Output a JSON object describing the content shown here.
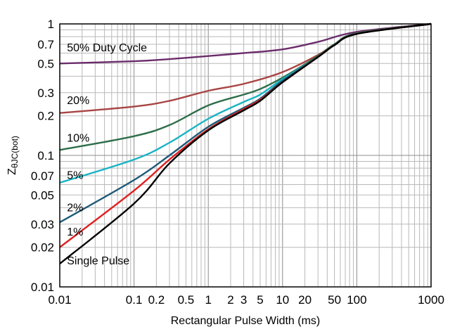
{
  "chart_data": {
    "type": "line",
    "x_scale": "log",
    "y_scale": "log",
    "xlabel": "Rectangular Pulse Width (ms)",
    "ylabel": "ZθJC(bot)",
    "ylabel_main": "Z",
    "ylabel_sub": "θJC(bot)",
    "xlim": [
      0.01,
      1000
    ],
    "ylim": [
      0.01,
      1
    ],
    "grid": true,
    "x_ticks": [
      {
        "value": 0.01,
        "label": "0.01"
      },
      {
        "value": 0.1,
        "label": "0.1"
      },
      {
        "value": 0.2,
        "label": "0.2"
      },
      {
        "value": 0.5,
        "label": "0.5"
      },
      {
        "value": 1,
        "label": "1"
      },
      {
        "value": 2,
        "label": "2"
      },
      {
        "value": 3,
        "label": "3"
      },
      {
        "value": 5,
        "label": "5"
      },
      {
        "value": 10,
        "label": "10"
      },
      {
        "value": 20,
        "label": "20"
      },
      {
        "value": 50,
        "label": "50"
      },
      {
        "value": 100,
        "label": "100"
      },
      {
        "value": 1000,
        "label": "1000"
      }
    ],
    "y_ticks": [
      {
        "value": 0.01,
        "label": "0.01"
      },
      {
        "value": 0.02,
        "label": "0.02"
      },
      {
        "value": 0.03,
        "label": "0.03"
      },
      {
        "value": 0.05,
        "label": "0.05"
      },
      {
        "value": 0.07,
        "label": "0.07"
      },
      {
        "value": 0.1,
        "label": "0.1"
      },
      {
        "value": 0.2,
        "label": "0.2"
      },
      {
        "value": 0.3,
        "label": "0.3"
      },
      {
        "value": 0.5,
        "label": "0.5"
      },
      {
        "value": 0.7,
        "label": "0.7"
      },
      {
        "value": 1,
        "label": "1"
      }
    ],
    "series": [
      {
        "name": "50% Duty Cycle",
        "color": "#6b2c6b",
        "x": [
          0.01,
          0.1,
          0.3,
          1,
          3,
          10,
          30,
          100,
          1000
        ],
        "y": [
          0.5,
          0.52,
          0.54,
          0.57,
          0.6,
          0.64,
          0.73,
          0.87,
          1.0
        ]
      },
      {
        "name": "20%",
        "color": "#a84444",
        "x": [
          0.01,
          0.1,
          0.3,
          1,
          3,
          10,
          30,
          50,
          100,
          1000
        ],
        "y": [
          0.21,
          0.235,
          0.26,
          0.31,
          0.35,
          0.43,
          0.58,
          0.7,
          0.85,
          1.0
        ]
      },
      {
        "name": "10%",
        "color": "#2f6e4a",
        "x": [
          0.01,
          0.1,
          0.3,
          1,
          3,
          5,
          10,
          30,
          50,
          100,
          1000
        ],
        "y": [
          0.11,
          0.14,
          0.17,
          0.24,
          0.29,
          0.32,
          0.39,
          0.57,
          0.7,
          0.85,
          1.0
        ]
      },
      {
        "name": "5%",
        "color": "#1ab3c4",
        "x": [
          0.01,
          0.1,
          0.3,
          1,
          3,
          5,
          10,
          30,
          50,
          100,
          1000
        ],
        "y": [
          0.062,
          0.093,
          0.125,
          0.19,
          0.255,
          0.29,
          0.38,
          0.56,
          0.69,
          0.84,
          1.0
        ]
      },
      {
        "name": "2%",
        "color": "#1e5a78",
        "x": [
          0.01,
          0.1,
          0.3,
          1,
          3,
          5,
          10,
          30,
          50,
          100,
          1000
        ],
        "y": [
          0.031,
          0.065,
          0.1,
          0.165,
          0.23,
          0.27,
          0.37,
          0.56,
          0.69,
          0.84,
          1.0
        ]
      },
      {
        "name": "1%",
        "color": "#e01f1f",
        "x": [
          0.01,
          0.1,
          0.3,
          1,
          3,
          5,
          10,
          30,
          50,
          100,
          1000
        ],
        "y": [
          0.02,
          0.054,
          0.093,
          0.158,
          0.225,
          0.265,
          0.36,
          0.56,
          0.69,
          0.84,
          1.0
        ]
      },
      {
        "name": "Single Pulse",
        "color": "#000000",
        "x": [
          0.01,
          0.1,
          0.3,
          1,
          3,
          5,
          10,
          30,
          50,
          100,
          1000
        ],
        "y": [
          0.015,
          0.043,
          0.087,
          0.155,
          0.22,
          0.26,
          0.36,
          0.56,
          0.69,
          0.84,
          1.0
        ]
      }
    ],
    "series_labels": [
      {
        "text": "50% Duty Cycle",
        "anchor_x": 0.0125,
        "anchor_y": 0.62
      },
      {
        "text": "20%",
        "anchor_x": 0.0125,
        "anchor_y": 0.245
      },
      {
        "text": "10%",
        "anchor_x": 0.0125,
        "anchor_y": 0.127
      },
      {
        "text": "5%",
        "anchor_x": 0.0125,
        "anchor_y": 0.066
      },
      {
        "text": "2%",
        "anchor_x": 0.0125,
        "anchor_y": 0.0375
      },
      {
        "text": "1%",
        "anchor_x": 0.0125,
        "anchor_y": 0.0245
      },
      {
        "text": "Single Pulse",
        "anchor_x": 0.0125,
        "anchor_y": 0.0148
      }
    ]
  }
}
